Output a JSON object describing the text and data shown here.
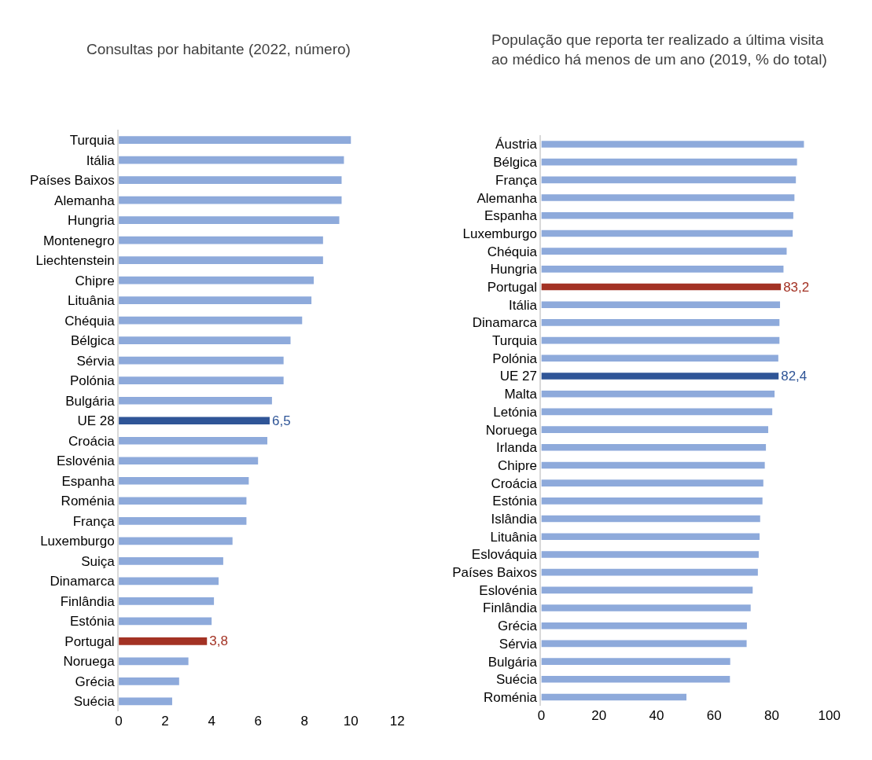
{
  "chart_data": [
    {
      "type": "bar",
      "orientation": "horizontal",
      "title": "Consultas por habitante (2022, número)",
      "categories": [
        "Turquia",
        "Itália",
        "Países Baixos",
        "Alemanha",
        "Hungria",
        "Montenegro",
        "Liechtenstein",
        "Chipre",
        "Lituânia",
        "Chéquia",
        "Bélgica",
        "Sérvia",
        "Polónia",
        "Bulgária",
        "UE 28",
        "Croácia",
        "Eslovénia",
        "Espanha",
        "Roménia",
        "França",
        "Luxemburgo",
        "Suiça",
        "Dinamarca",
        "Finlândia",
        "Estónia",
        "Portugal",
        "Noruega",
        "Grécia",
        "Suécia"
      ],
      "values": [
        10.0,
        9.7,
        9.6,
        9.6,
        9.5,
        8.8,
        8.8,
        8.4,
        8.3,
        7.9,
        7.4,
        7.1,
        7.1,
        6.6,
        6.5,
        6.4,
        6.0,
        5.6,
        5.5,
        5.5,
        4.9,
        4.5,
        4.3,
        4.1,
        4.0,
        3.8,
        3.0,
        2.6,
        2.3
      ],
      "colors": [
        "#8eaadb",
        "#8eaadb",
        "#8eaadb",
        "#8eaadb",
        "#8eaadb",
        "#8eaadb",
        "#8eaadb",
        "#8eaadb",
        "#8eaadb",
        "#8eaadb",
        "#8eaadb",
        "#8eaadb",
        "#8eaadb",
        "#8eaadb",
        "#2f5597",
        "#8eaadb",
        "#8eaadb",
        "#8eaadb",
        "#8eaadb",
        "#8eaadb",
        "#8eaadb",
        "#8eaadb",
        "#8eaadb",
        "#8eaadb",
        "#8eaadb",
        "#a33224",
        "#8eaadb",
        "#8eaadb",
        "#8eaadb"
      ],
      "value_labels": [
        null,
        null,
        null,
        null,
        null,
        null,
        null,
        null,
        null,
        null,
        null,
        null,
        null,
        null,
        "6,5",
        null,
        null,
        null,
        null,
        null,
        null,
        null,
        null,
        null,
        null,
        "3,8",
        null,
        null,
        null
      ],
      "xlim": [
        0,
        12
      ],
      "xticks": [
        0,
        2,
        4,
        6,
        8,
        10,
        12
      ]
    },
    {
      "type": "bar",
      "orientation": "horizontal",
      "title": "População que reporta ter realizado a última visita\nao médico há menos de um ano (2019, % do total)",
      "categories": [
        "Áustria",
        "Bélgica",
        "França",
        "Alemanha",
        "Espanha",
        "Luxemburgo",
        "Chéquia",
        "Hungria",
        "Portugal",
        "Itália",
        "Dinamarca",
        "Turquia",
        "Polónia",
        "UE 27",
        "Malta",
        "Letónia",
        "Noruega",
        "Irlanda",
        "Chipre",
        "Croácia",
        "Estónia",
        "Islândia",
        "Lituânia",
        "Eslováquia",
        "Países Baixos",
        "Eslovénia",
        "Finlândia",
        "Grécia",
        "Sérvia",
        "Bulgária",
        "Suécia",
        "Roménia"
      ],
      "values": [
        91.2,
        88.8,
        88.4,
        87.9,
        87.5,
        87.3,
        85.2,
        84.1,
        83.2,
        82.9,
        82.7,
        82.7,
        82.3,
        82.4,
        81.0,
        80.2,
        78.8,
        78.0,
        77.6,
        77.1,
        76.8,
        76.0,
        75.8,
        75.5,
        75.2,
        73.4,
        72.7,
        71.4,
        71.3,
        65.6,
        65.5,
        50.4
      ],
      "colors": [
        "#8eaadb",
        "#8eaadb",
        "#8eaadb",
        "#8eaadb",
        "#8eaadb",
        "#8eaadb",
        "#8eaadb",
        "#8eaadb",
        "#a33224",
        "#8eaadb",
        "#8eaadb",
        "#8eaadb",
        "#8eaadb",
        "#2f5597",
        "#8eaadb",
        "#8eaadb",
        "#8eaadb",
        "#8eaadb",
        "#8eaadb",
        "#8eaadb",
        "#8eaadb",
        "#8eaadb",
        "#8eaadb",
        "#8eaadb",
        "#8eaadb",
        "#8eaadb",
        "#8eaadb",
        "#8eaadb",
        "#8eaadb",
        "#8eaadb",
        "#8eaadb",
        "#8eaadb"
      ],
      "value_labels": [
        null,
        null,
        null,
        null,
        null,
        null,
        null,
        null,
        "83,2",
        null,
        null,
        null,
        null,
        "82,4",
        null,
        null,
        null,
        null,
        null,
        null,
        null,
        null,
        null,
        null,
        null,
        null,
        null,
        null,
        null,
        null,
        null,
        null
      ],
      "xlim": [
        0,
        100
      ],
      "xticks": [
        0,
        20,
        40,
        60,
        80,
        100
      ]
    }
  ]
}
